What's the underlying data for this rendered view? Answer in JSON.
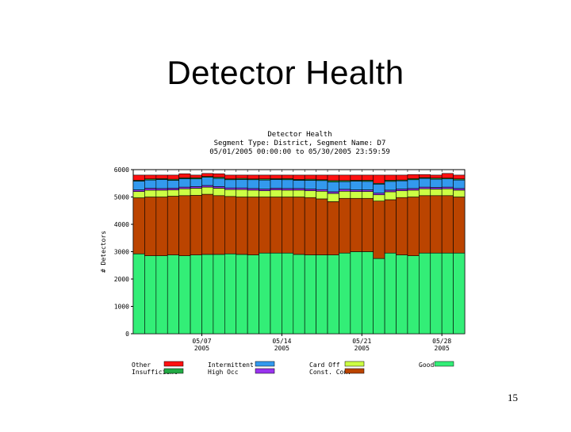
{
  "slide": {
    "title": "Detector Health",
    "page_number": "15"
  },
  "chart_data": {
    "type": "bar",
    "stacked": true,
    "title_lines": [
      "Detector Health",
      "Segment Type: District, Segment Name: D7",
      "05/01/2005 00:00:00 to 05/30/2005 23:59:59"
    ],
    "xlabel": "",
    "ylabel": "# Detectors",
    "ylim": [
      0,
      6000
    ],
    "yticks": [
      0,
      1000,
      2000,
      3000,
      4000,
      5000,
      6000
    ],
    "x_tick_labels": [
      {
        "index": 6,
        "line1": "05/07",
        "line2": "2005"
      },
      {
        "index": 13,
        "line1": "05/14",
        "line2": "2005"
      },
      {
        "index": 20,
        "line1": "05/21",
        "line2": "2005"
      },
      {
        "index": 27,
        "line1": "05/28",
        "line2": "2005"
      }
    ],
    "categories": [
      "05/01",
      "05/02",
      "05/03",
      "05/04",
      "05/05",
      "05/06",
      "05/07",
      "05/08",
      "05/09",
      "05/10",
      "05/11",
      "05/12",
      "05/13",
      "05/14",
      "05/15",
      "05/16",
      "05/17",
      "05/18",
      "05/19",
      "05/20",
      "05/21",
      "05/22",
      "05/23",
      "05/24",
      "05/25",
      "05/26",
      "05/27",
      "05/28",
      "05/29"
    ],
    "series": [
      {
        "name": "Good",
        "color": "#33ee77",
        "values": [
          2920,
          2850,
          2850,
          2880,
          2850,
          2880,
          2900,
          2900,
          2920,
          2900,
          2880,
          2950,
          2950,
          2950,
          2900,
          2880,
          2880,
          2880,
          2950,
          3000,
          3000,
          2750,
          2950,
          2880,
          2850,
          2950,
          2950,
          2950,
          2950
        ]
      },
      {
        "name": "Const. Con.",
        "color": "#bb4400",
        "values": [
          2050,
          2150,
          2150,
          2150,
          2200,
          2180,
          2200,
          2150,
          2100,
          2100,
          2120,
          2050,
          2050,
          2050,
          2100,
          2100,
          2050,
          1950,
          2000,
          1950,
          1950,
          2100,
          1950,
          2100,
          2150,
          2100,
          2100,
          2100,
          2050
        ]
      },
      {
        "name": "Card Off",
        "color": "#ccff44",
        "values": [
          230,
          250,
          250,
          230,
          250,
          260,
          260,
          270,
          250,
          270,
          250,
          230,
          260,
          250,
          250,
          250,
          280,
          300,
          260,
          250,
          250,
          230,
          290,
          250,
          250,
          250,
          240,
          250,
          250
        ]
      },
      {
        "name": "High Occ",
        "color": "#9933ee",
        "values": [
          60,
          70,
          60,
          60,
          60,
          60,
          60,
          60,
          60,
          60,
          60,
          60,
          60,
          60,
          60,
          60,
          60,
          60,
          70,
          60,
          60,
          60,
          60,
          60,
          60,
          60,
          60,
          60,
          60
        ]
      },
      {
        "name": "Intermittent",
        "color": "#3399ee",
        "values": [
          320,
          300,
          330,
          290,
          310,
          280,
          300,
          300,
          300,
          310,
          320,
          330,
          320,
          320,
          300,
          320,
          330,
          360,
          280,
          320,
          310,
          330,
          320,
          300,
          320,
          320,
          300,
          300,
          310
        ]
      },
      {
        "name": "Insufficient",
        "color": "#22aa44",
        "values": [
          30,
          40,
          30,
          40,
          30,
          40,
          30,
          40,
          30,
          40,
          30,
          40,
          30,
          40,
          30,
          40,
          30,
          50,
          40,
          30,
          40,
          30,
          40,
          30,
          40,
          30,
          40,
          30,
          40
        ]
      },
      {
        "name": "Other",
        "color": "#ff1111",
        "values": [
          190,
          140,
          130,
          150,
          150,
          100,
          110,
          130,
          140,
          120,
          140,
          140,
          130,
          130,
          160,
          150,
          170,
          200,
          200,
          190,
          190,
          300,
          190,
          180,
          150,
          110,
          110,
          170,
          140
        ]
      }
    ],
    "legend": [
      {
        "name": "Other",
        "series": "Other"
      },
      {
        "name": "Intermittent",
        "series": "Intermittent"
      },
      {
        "name": "Card Off",
        "series": "Card Off"
      },
      {
        "name": "Good",
        "series": "Good"
      },
      {
        "name": "Insufficient",
        "series": "Insufficient"
      },
      {
        "name": "High Occ",
        "series": "High Occ"
      },
      {
        "name": "Const. Con.",
        "series": "Const. Con."
      }
    ],
    "legend_placement": "bottom"
  }
}
